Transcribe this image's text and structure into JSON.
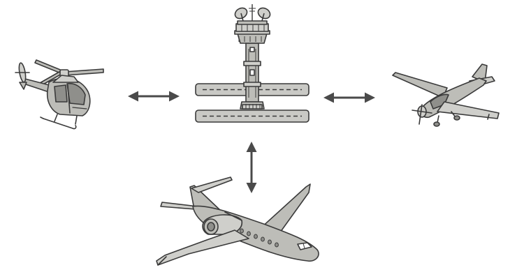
{
  "diagram": {
    "nodes": [
      {
        "id": "helicopter",
        "icon": "helicopter-icon"
      },
      {
        "id": "control-tower",
        "icon": "control-tower-icon"
      },
      {
        "id": "light-aircraft",
        "icon": "propeller-plane-icon"
      },
      {
        "id": "business-jet",
        "icon": "jet-icon"
      }
    ],
    "links": [
      {
        "from": "helicopter",
        "to": "control-tower",
        "direction": "both"
      },
      {
        "from": "control-tower",
        "to": "light-aircraft",
        "direction": "both"
      },
      {
        "from": "control-tower",
        "to": "business-jet",
        "direction": "both"
      }
    ]
  },
  "colors": {
    "fill": "#bdbdb8",
    "fill_light": "#cfcfcb",
    "stroke": "#3a3a3a",
    "arrow": "#4a4a4a"
  }
}
